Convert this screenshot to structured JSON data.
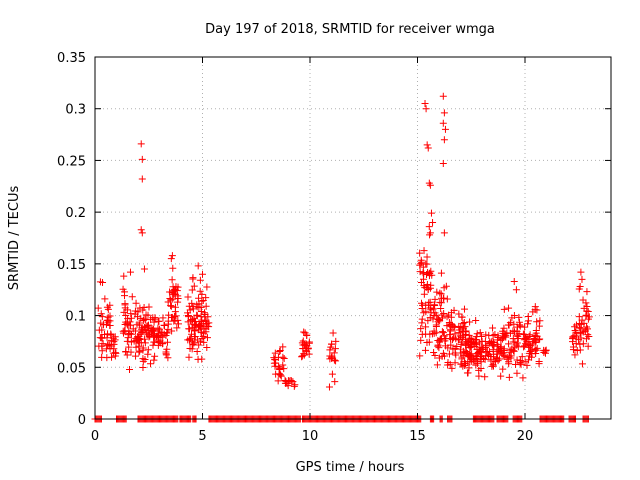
{
  "chart_data": {
    "type": "scatter",
    "title": "Day 197 of 2018, SRMTID for receiver wmga",
    "xlabel": "GPS time / hours",
    "ylabel": "SRMTID / TECUs",
    "xlim": [
      0,
      24
    ],
    "ylim": [
      0,
      0.35
    ],
    "x_ticks": [
      0,
      5,
      10,
      15,
      20
    ],
    "x_tick_labels": [
      "0",
      "5",
      "10",
      "15",
      "20"
    ],
    "y_ticks": [
      0,
      0.05,
      0.1,
      0.15,
      0.2,
      0.25,
      0.3,
      0.35
    ],
    "y_tick_labels": [
      "0",
      "0.05",
      "0.1",
      "0.15",
      "0.2",
      "0.25",
      "0.3",
      "0.35"
    ],
    "grid": true,
    "marker": "+",
    "series": [
      {
        "name": "SRMTID",
        "color": "#ff0000",
        "clusters": [
          {
            "x_start": 0.15,
            "x_end": 0.8,
            "y_min": 0.04,
            "y_max": 0.135,
            "count": 45
          },
          {
            "x_start": 0.8,
            "x_end": 1.0,
            "y_min": 0.05,
            "y_max": 0.09,
            "count": 10
          },
          {
            "x_start": 1.3,
            "x_end": 1.9,
            "y_min": 0.04,
            "y_max": 0.145,
            "count": 45
          },
          {
            "x_start": 1.9,
            "x_end": 2.8,
            "y_min": 0.045,
            "y_max": 0.12,
            "count": 80
          },
          {
            "x_start": 2.8,
            "x_end": 3.4,
            "y_min": 0.05,
            "y_max": 0.11,
            "count": 35
          },
          {
            "x_start": 3.4,
            "x_end": 3.9,
            "y_min": 0.06,
            "y_max": 0.16,
            "count": 40
          },
          {
            "x_start": 4.3,
            "x_end": 5.0,
            "y_min": 0.04,
            "y_max": 0.148,
            "count": 70
          },
          {
            "x_start": 4.9,
            "x_end": 5.3,
            "y_min": 0.04,
            "y_max": 0.14,
            "count": 30
          },
          {
            "x_start": 8.3,
            "x_end": 8.8,
            "y_min": 0.03,
            "y_max": 0.075,
            "count": 25
          },
          {
            "x_start": 8.8,
            "x_end": 9.3,
            "y_min": 0.025,
            "y_max": 0.045,
            "count": 12
          },
          {
            "x_start": 9.6,
            "x_end": 10.0,
            "y_min": 0.05,
            "y_max": 0.095,
            "count": 25
          },
          {
            "x_start": 10.9,
            "x_end": 11.2,
            "y_min": 0.02,
            "y_max": 0.095,
            "count": 18
          },
          {
            "x_start": 15.1,
            "x_end": 15.7,
            "y_min": 0.04,
            "y_max": 0.2,
            "count": 60
          },
          {
            "x_start": 15.7,
            "x_end": 16.4,
            "y_min": 0.025,
            "y_max": 0.16,
            "count": 60
          },
          {
            "x_start": 16.4,
            "x_end": 17.3,
            "y_min": 0.03,
            "y_max": 0.125,
            "count": 60
          },
          {
            "x_start": 17.0,
            "x_end": 19.0,
            "y_min": 0.03,
            "y_max": 0.1,
            "count": 150
          },
          {
            "x_start": 19.0,
            "x_end": 20.7,
            "y_min": 0.03,
            "y_max": 0.12,
            "count": 120
          },
          {
            "x_start": 20.8,
            "x_end": 21.0,
            "y_min": 0.06,
            "y_max": 0.07,
            "count": 6
          },
          {
            "x_start": 22.2,
            "x_end": 22.6,
            "y_min": 0.05,
            "y_max": 0.1,
            "count": 20
          },
          {
            "x_start": 22.5,
            "x_end": 23.0,
            "y_min": 0.04,
            "y_max": 0.145,
            "count": 30
          }
        ],
        "peaks": [
          [
            2.15,
            0.266
          ],
          [
            2.2,
            0.251
          ],
          [
            2.2,
            0.232
          ],
          [
            2.15,
            0.183
          ],
          [
            2.2,
            0.18
          ],
          [
            2.3,
            0.145
          ],
          [
            3.6,
            0.158
          ],
          [
            3.55,
            0.155
          ],
          [
            4.8,
            0.148
          ],
          [
            0.35,
            0.132
          ],
          [
            1.65,
            0.142
          ],
          [
            15.35,
            0.305
          ],
          [
            15.4,
            0.3
          ],
          [
            15.45,
            0.265
          ],
          [
            15.5,
            0.262
          ],
          [
            15.55,
            0.228
          ],
          [
            15.6,
            0.226
          ],
          [
            15.65,
            0.199
          ],
          [
            15.7,
            0.19
          ],
          [
            15.6,
            0.18
          ],
          [
            16.2,
            0.312
          ],
          [
            16.25,
            0.296
          ],
          [
            16.2,
            0.286
          ],
          [
            16.3,
            0.28
          ],
          [
            16.25,
            0.27
          ],
          [
            16.2,
            0.247
          ],
          [
            16.25,
            0.18
          ],
          [
            16.7,
            0.105
          ],
          [
            19.5,
            0.133
          ],
          [
            19.6,
            0.125
          ],
          [
            22.6,
            0.142
          ],
          [
            22.65,
            0.135
          ],
          [
            22.7,
            0.115
          ],
          [
            22.75,
            0.107
          ],
          [
            5.0,
            0.14
          ]
        ],
        "zero_segments": [
          [
            0.0,
            0.3
          ],
          [
            1.0,
            1.45
          ],
          [
            2.0,
            2.25
          ],
          [
            2.3,
            3.85
          ],
          [
            3.95,
            4.45
          ],
          [
            4.55,
            4.7
          ],
          [
            5.3,
            8.2
          ],
          [
            8.25,
            9.55
          ],
          [
            9.65,
            15.15
          ],
          [
            15.6,
            15.75
          ],
          [
            16.05,
            16.15
          ],
          [
            16.4,
            16.6
          ],
          [
            17.6,
            18.55
          ],
          [
            18.7,
            19.2
          ],
          [
            19.45,
            19.85
          ],
          [
            20.7,
            21.8
          ],
          [
            22.05,
            22.35
          ],
          [
            22.7,
            22.95
          ]
        ]
      }
    ]
  }
}
